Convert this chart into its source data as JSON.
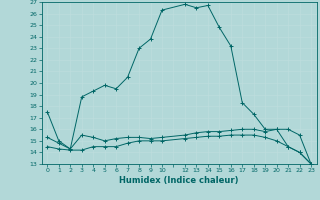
{
  "xlabel": "Humidex (Indice chaleur)",
  "xlim": [
    -0.5,
    23.5
  ],
  "ylim": [
    13,
    27
  ],
  "yticks": [
    13,
    14,
    15,
    16,
    17,
    18,
    19,
    20,
    21,
    22,
    23,
    24,
    25,
    26,
    27
  ],
  "xtick_positions": [
    0,
    1,
    2,
    3,
    4,
    5,
    6,
    7,
    8,
    9,
    10,
    12,
    13,
    14,
    15,
    16,
    17,
    18,
    19,
    20,
    21,
    22,
    23
  ],
  "xtick_labels": [
    "0",
    "1",
    "2",
    "3",
    "4",
    "5",
    "6",
    "7",
    "8",
    "9",
    "10",
    "12",
    "13",
    "14",
    "15",
    "16",
    "17",
    "18",
    "19",
    "20",
    "21",
    "22",
    "23"
  ],
  "bg_color": "#b2d8d8",
  "line_color": "#006666",
  "grid_color": "#c8e8e8",
  "lines": [
    {
      "x": [
        0,
        1,
        2,
        3,
        4,
        5,
        6,
        7,
        8,
        9,
        10,
        12,
        13,
        14,
        15,
        16,
        17,
        18,
        19,
        20,
        21,
        22,
        23
      ],
      "y": [
        17.5,
        15.0,
        14.3,
        18.8,
        19.3,
        19.8,
        19.5,
        20.5,
        23.0,
        23.8,
        26.3,
        26.8,
        26.5,
        26.7,
        24.8,
        23.2,
        18.3,
        17.3,
        16.0,
        16.0,
        14.5,
        14.0,
        13.0
      ]
    },
    {
      "x": [
        0,
        1,
        2,
        3,
        4,
        5,
        6,
        7,
        8,
        9,
        10,
        12,
        13,
        14,
        15,
        16,
        17,
        18,
        19,
        20,
        21,
        22,
        23
      ],
      "y": [
        15.3,
        14.8,
        14.3,
        15.5,
        15.3,
        15.0,
        15.2,
        15.3,
        15.3,
        15.2,
        15.3,
        15.5,
        15.7,
        15.8,
        15.8,
        15.9,
        16.0,
        16.0,
        15.8,
        16.0,
        16.0,
        15.5,
        13.0
      ]
    },
    {
      "x": [
        0,
        1,
        2,
        3,
        4,
        5,
        6,
        7,
        8,
        9,
        10,
        12,
        13,
        14,
        15,
        16,
        17,
        18,
        19,
        20,
        21,
        22,
        23
      ],
      "y": [
        14.5,
        14.3,
        14.2,
        14.2,
        14.5,
        14.5,
        14.5,
        14.8,
        15.0,
        15.0,
        15.0,
        15.2,
        15.3,
        15.4,
        15.4,
        15.5,
        15.5,
        15.5,
        15.3,
        15.0,
        14.5,
        14.0,
        13.0
      ]
    }
  ]
}
